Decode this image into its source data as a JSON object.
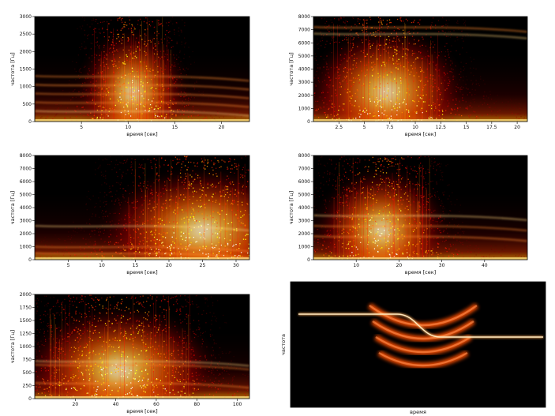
{
  "chart_data": [
    {
      "type": "heatmap",
      "colormap": "hot",
      "xlabel": "время [сек]",
      "ylabel": "частота [Гц]",
      "xlim": [
        0,
        23
      ],
      "ylim": [
        0,
        3000
      ],
      "xticks": [
        5,
        10,
        15,
        20
      ],
      "yticks": [
        0,
        500,
        1000,
        1500,
        2000,
        2500,
        3000
      ],
      "yscale": 3000,
      "energy_center_x": 10.5,
      "energy_spread_x": 2.6,
      "harmonics_y": [
        300,
        550,
        800,
        1050,
        1300
      ]
    },
    {
      "type": "heatmap",
      "colormap": "hot",
      "xlabel": "время [сек]",
      "ylabel": "частота [Гц]",
      "xlim": [
        0,
        21
      ],
      "ylim": [
        0,
        8000
      ],
      "xticks": [
        2.5,
        5.0,
        7.5,
        10.0,
        12.5,
        15.0,
        17.5,
        20.0
      ],
      "yticks": [
        0,
        1000,
        2000,
        3000,
        4000,
        5000,
        6000,
        7000,
        8000
      ],
      "yscale": 8000,
      "energy_center_x": 7.2,
      "energy_spread_x": 3.5,
      "harmonics_y": [
        6700,
        7200
      ]
    },
    {
      "type": "heatmap",
      "colormap": "hot",
      "xlabel": "время [сек]",
      "ylabel": "частота [Гц]",
      "xlim": [
        0,
        32
      ],
      "ylim": [
        0,
        8000
      ],
      "xticks": [
        5,
        10,
        15,
        20,
        25,
        30
      ],
      "yticks": [
        0,
        1000,
        2000,
        3000,
        4000,
        5000,
        6000,
        7000,
        8000
      ],
      "yscale": 8000,
      "energy_center_x": 25,
      "energy_spread_x": 7,
      "harmonics_y": [
        2600,
        1000,
        500
      ]
    },
    {
      "type": "heatmap",
      "colormap": "hot",
      "xlabel": "время [сек]",
      "ylabel": "частота [Гц]",
      "xlim": [
        0,
        50
      ],
      "ylim": [
        0,
        8000
      ],
      "xticks": [
        10,
        20,
        30,
        40
      ],
      "yticks": [
        0,
        1000,
        2000,
        3000,
        4000,
        5000,
        6000,
        7000,
        8000
      ],
      "yscale": 8000,
      "energy_center_x": 16,
      "energy_spread_x": 7,
      "harmonics_y": [
        3400,
        2600,
        1800
      ]
    },
    {
      "type": "heatmap",
      "colormap": "hot",
      "xlabel": "время [сек]",
      "ylabel": "частота [Гц]",
      "xlim": [
        0,
        106
      ],
      "ylim": [
        0,
        2000
      ],
      "xticks": [
        20,
        40,
        60,
        80,
        100
      ],
      "yticks": [
        0,
        250,
        500,
        750,
        1000,
        1250,
        1500,
        1750,
        2000
      ],
      "yscale": 2000,
      "energy_center_x": 42,
      "energy_spread_x": 22,
      "harmonics_y": [
        720,
        650,
        300
      ]
    },
    {
      "type": "heatmap",
      "colormap": "hot",
      "xlabel": "время",
      "ylabel": "частота",
      "schematic": true,
      "xticks": [],
      "yticks": []
    }
  ]
}
